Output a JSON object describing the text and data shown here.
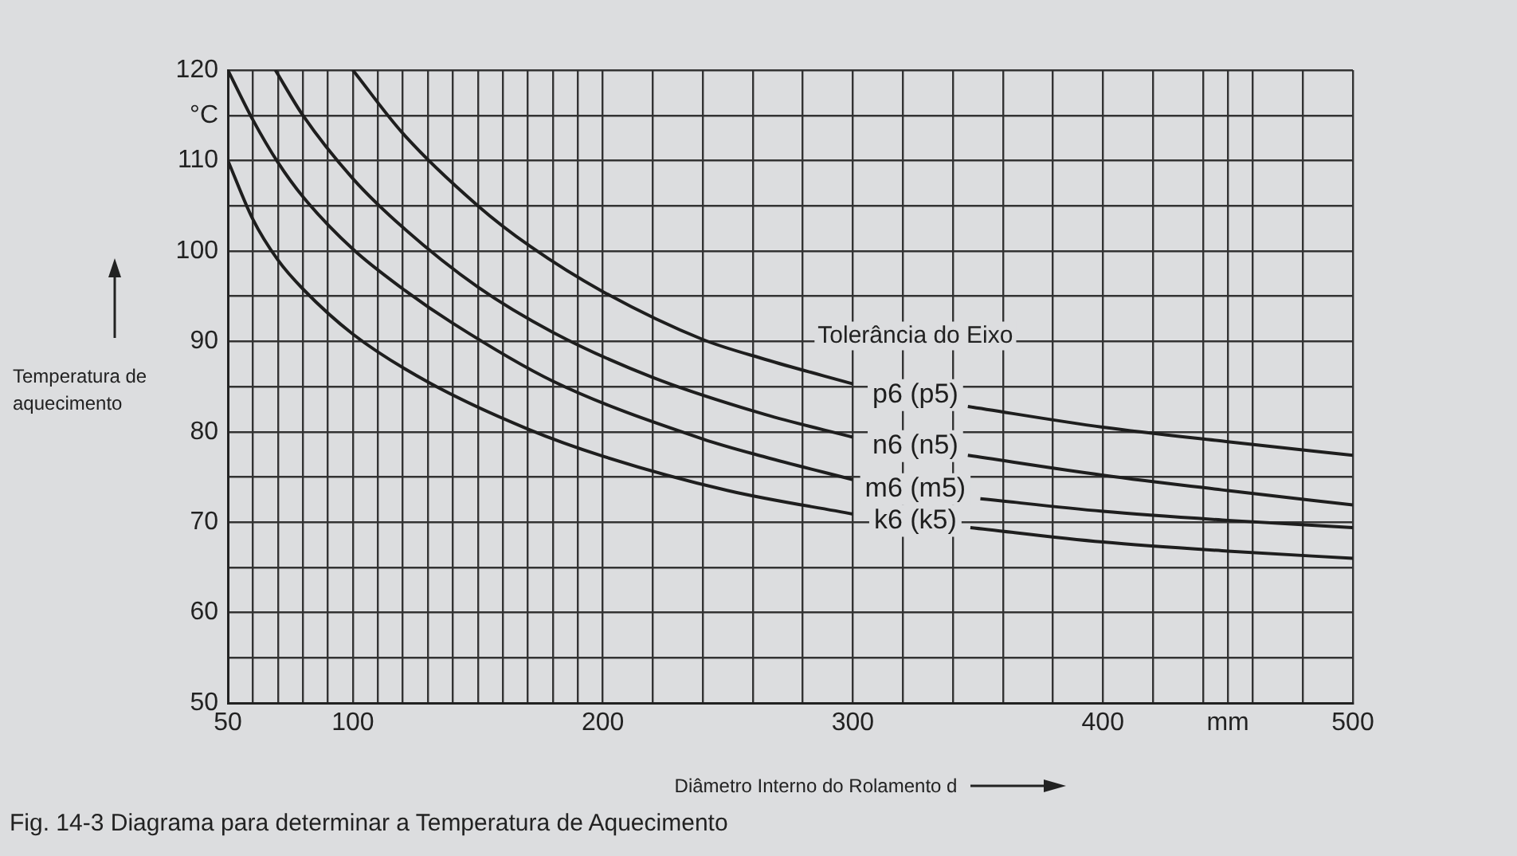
{
  "chart_data": {
    "type": "line",
    "legend_title": "Tolerância do Eixo",
    "xlabel": "Diâmetro Interno do Rolamento d",
    "ylabel": "Temperatura de aquecimento",
    "annotations": [
      "Fig. 14-3 Diagrama para determinar a Temperatura de Aquecimento"
    ],
    "series": [
      {
        "name": "p6 (p5)",
        "color": "#1e1e1e",
        "x": [
          100,
          120,
          150,
          171,
          200,
          240,
          265,
          300,
          325,
          346,
          400,
          450,
          500
        ],
        "values": [
          120,
          113,
          105,
          100.5,
          95.5,
          90.2,
          88,
          85.3,
          null,
          82.8,
          80.5,
          78.9,
          77.4
        ]
      },
      {
        "name": "n6 (n5)",
        "color": "#1e1e1e",
        "x": [
          69,
          80,
          100,
          120,
          150,
          180,
          220,
          265,
          300,
          325,
          346,
          400,
          450,
          500
        ],
        "values": [
          120,
          115,
          108,
          102.6,
          96,
          91,
          86,
          81.9,
          79.4,
          null,
          77.4,
          75.2,
          73.5,
          71.9
        ]
      },
      {
        "name": "m6 (m5)",
        "color": "#1e1e1e",
        "x": [
          50,
          60,
          70,
          80,
          100,
          120,
          140,
          180,
          240,
          265,
          300,
          325,
          351,
          400,
          450,
          500
        ],
        "values": [
          120,
          114.5,
          109.8,
          106,
          100.2,
          95.8,
          92,
          85.6,
          79.2,
          77.2,
          74.7,
          null,
          72.6,
          71.2,
          70.2,
          69.4
        ]
      },
      {
        "name": "k6 (k5)",
        "color": "#1e1e1e",
        "x": [
          50,
          60,
          70,
          80,
          100,
          130,
          170,
          200,
          250,
          300,
          325,
          347,
          400,
          450,
          500
        ],
        "values": [
          110,
          103.5,
          99,
          95.8,
          90.8,
          85.5,
          80.3,
          77.3,
          73.5,
          70.9,
          null,
          69.4,
          67.8,
          66.8,
          66
        ]
      }
    ],
    "xlim": [
      50,
      500
    ],
    "xticks": [
      50,
      {
        "value": 60,
        "label": null
      },
      {
        "value": 70,
        "label": null
      },
      {
        "value": 80,
        "label": null
      },
      {
        "value": 90,
        "label": null
      },
      100,
      {
        "value": 110,
        "label": null
      },
      {
        "value": 120,
        "label": null
      },
      {
        "value": 130,
        "label": null
      },
      {
        "value": 140,
        "label": null
      },
      {
        "value": 150,
        "label": null
      },
      {
        "value": 160,
        "label": null
      },
      {
        "value": 170,
        "label": null
      },
      {
        "value": 180,
        "label": null
      },
      {
        "value": 190,
        "label": null
      },
      200,
      {
        "value": 220,
        "label": null
      },
      {
        "value": 240,
        "label": null
      },
      {
        "value": 260,
        "label": null
      },
      {
        "value": 280,
        "label": null
      },
      300,
      {
        "value": 320,
        "label": null
      },
      {
        "value": 340,
        "label": null
      },
      {
        "value": 360,
        "label": null
      },
      {
        "value": 380,
        "label": null
      },
      400,
      {
        "value": 420,
        "label": null
      },
      {
        "value": 440,
        "label": null
      },
      {
        "value": 450,
        "label": "mm"
      },
      {
        "value": 460,
        "label": null
      },
      {
        "value": 480,
        "label": null
      },
      500
    ],
    "ylim": [
      50,
      120
    ],
    "yticks": [
      50,
      {
        "value": 55,
        "label": null
      },
      60,
      {
        "value": 65,
        "label": null
      },
      70,
      {
        "value": 75,
        "label": null
      },
      80,
      {
        "value": 85,
        "label": null
      },
      90,
      {
        "value": 95,
        "label": null
      },
      100,
      {
        "value": 105,
        "label": null
      },
      110,
      {
        "value": 115,
        "label": "°C"
      },
      120
    ],
    "grid": true,
    "legend": false,
    "marker": "none",
    "line_style": "solid"
  }
}
